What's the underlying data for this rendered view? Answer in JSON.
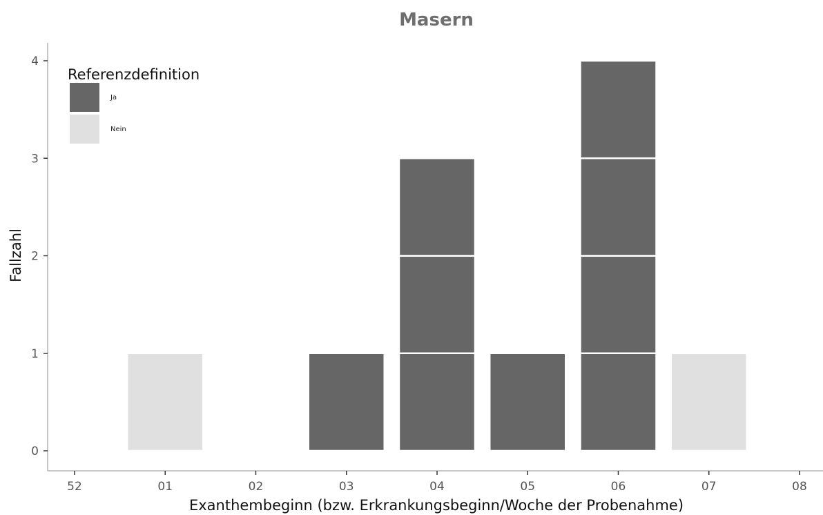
{
  "chart_data": {
    "type": "bar",
    "stacked": true,
    "stack_unit": 1,
    "title": "Masern",
    "xlabel": "Exanthembeginn (bzw. Erkrankungsbeginn/Woche der Probenahme)",
    "ylabel": "Fallzahl",
    "categories": [
      "52",
      "01",
      "02",
      "03",
      "04",
      "05",
      "06",
      "07",
      "08"
    ],
    "ylim": [
      0,
      4
    ],
    "yticks": [
      0,
      1,
      2,
      3,
      4
    ],
    "grid": false,
    "legend": {
      "title": "Referenzdefinition",
      "position": "top-left"
    },
    "series": [
      {
        "name": "Ja",
        "color": "#666666",
        "values": [
          0,
          0,
          0,
          1,
          3,
          1,
          4,
          0,
          0
        ]
      },
      {
        "name": "Nein",
        "color": "#e0e0e0",
        "values": [
          0,
          1,
          0,
          0,
          0,
          0,
          0,
          1,
          0
        ]
      }
    ]
  }
}
